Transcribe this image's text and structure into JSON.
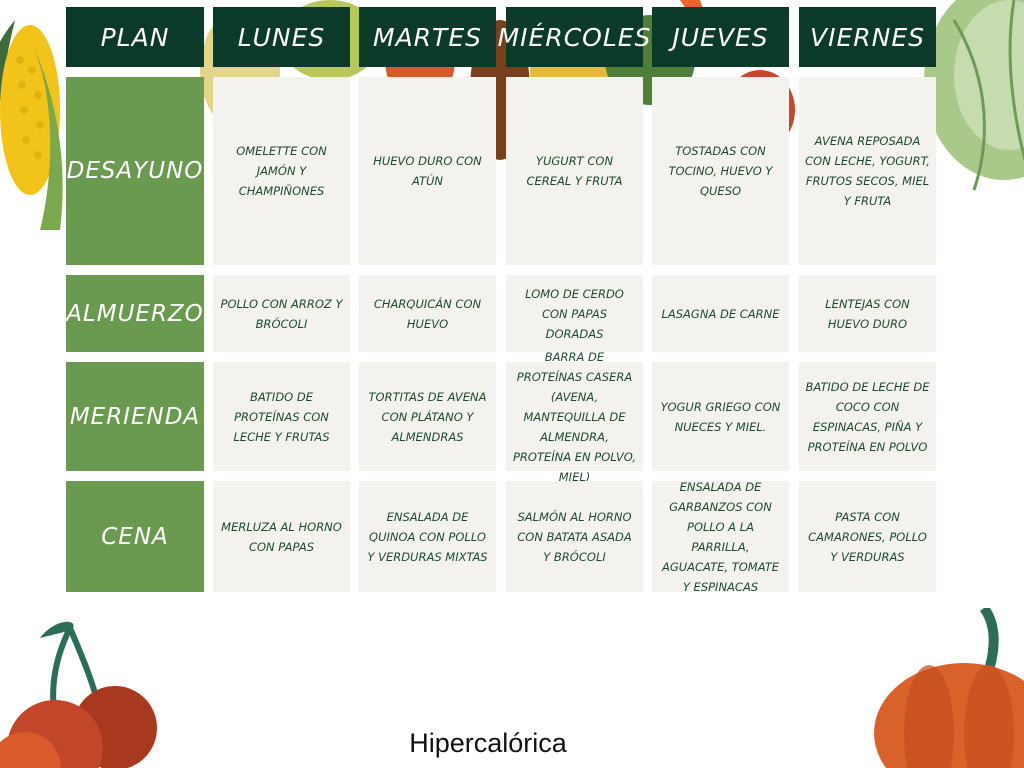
{
  "planner": {
    "corner_label": "PLAN",
    "days": [
      "LUNES",
      "MARTES",
      "MIÉRCOLES",
      "JUEVES",
      "VIERNES"
    ],
    "meals": [
      {
        "label": "DESAYUNO",
        "items": [
          "OMELETTE CON JAMÓN Y CHAMPIÑONES",
          "HUEVO DURO CON ATÚN",
          "YUGURT CON CEREAL Y FRUTA",
          "TOSTADAS CON TOCINO, HUEVO Y QUESO",
          "AVENA REPOSADA CON LECHE, YOGURT, FRUTOS SECOS, MIEL Y FRUTA"
        ]
      },
      {
        "label": "ALMUERZO",
        "items": [
          "POLLO CON ARROZ Y BRÓCOLI",
          "CHARQUICÁN CON HUEVO",
          "LOMO DE CERDO CON PAPAS DORADAS",
          "LASAGNA DE CARNE",
          "LENTEJAS CON HUEVO DURO"
        ]
      },
      {
        "label": "MERIENDA",
        "items": [
          "BATIDO DE PROTEÍNAS CON LECHE Y FRUTAS",
          "TORTITAS DE AVENA CON PLÁTANO Y ALMENDRAS",
          "BARRA DE PROTEÍNAS CASERA (AVENA, MANTEQUILLA DE ALMENDRA, PROTEÍNA EN POLVO, MIEL)",
          "YOGUR GRIEGO CON NUECES Y MIEL.",
          "BATIDO DE LECHE DE COCO CON ESPINACAS, PIÑA Y PROTEÍNA EN POLVO"
        ]
      },
      {
        "label": "CENA",
        "items": [
          "MERLUZA AL HORNO CON PAPAS",
          "ENSALADA DE QUINOA CON POLLO Y VERDURAS MIXTAS",
          "SALMÓN AL HORNO CON BATATA ASADA Y BRÓCOLI",
          "ENSALADA DE GARBANZOS CON POLLO A LA PARRILLA, AGUACATE, TOMATE Y ESPINACAS",
          "PASTA CON CAMARONES, POLLO Y VERDURAS"
        ]
      }
    ]
  },
  "footer": {
    "title": "Hipercalórica"
  },
  "colors": {
    "header_bg": "#0b3a2a",
    "row_label_bg": "#6a9a50",
    "cell_bg": "#f4f2ee",
    "cell_text": "#1d4a2e"
  }
}
